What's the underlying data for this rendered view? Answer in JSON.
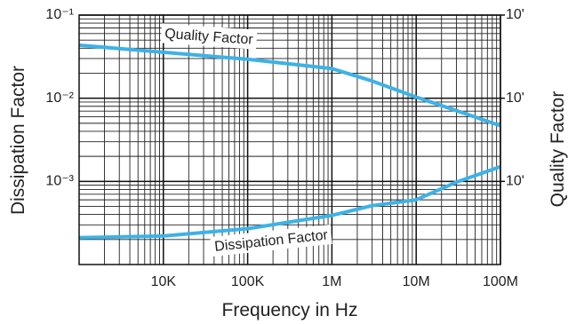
{
  "chart_data": {
    "type": "line",
    "x_label": "Frequency in Hz",
    "y_label": "Dissipation Factor",
    "y2_label": "Quality Factor",
    "log_x": true,
    "log_y": true,
    "log_y2": true,
    "grid": true,
    "minor_grid": true,
    "xlim": [
      1000,
      100000000
    ],
    "xticks": [
      {
        "value": 10000,
        "label": "10K"
      },
      {
        "value": 100000,
        "label": "100K"
      },
      {
        "value": 1000000,
        "label": "1M"
      },
      {
        "value": 10000000,
        "label": "10M"
      },
      {
        "value": 100000000,
        "label": "100M"
      }
    ],
    "ylim": [
      0.0001,
      0.1
    ],
    "yticks": [
      {
        "value": 0.1,
        "label": "10⁻¹"
      },
      {
        "value": 0.01,
        "label": "10⁻²"
      },
      {
        "value": 0.001,
        "label": "10⁻³"
      }
    ],
    "y2lim": [
      10000,
      10
    ],
    "y2ticks": [
      {
        "value": 10,
        "label": "10'"
      },
      {
        "value": 100,
        "label": "10'"
      },
      {
        "value": 1000,
        "label": "10'"
      }
    ],
    "series": [
      {
        "name": "Quality Factor",
        "color": "#3db2e6",
        "axis": "y2",
        "x": [
          1000,
          10000,
          100000,
          1000000,
          3000000,
          10000000,
          30000000,
          100000000
        ],
        "values": [
          23,
          28,
          34,
          44,
          62,
          97,
          141,
          214
        ]
      },
      {
        "name": "Dissipation Factor",
        "color": "#3db2e6",
        "x": [
          1000,
          10000,
          100000,
          1000000,
          3000000,
          10000000,
          30000000,
          100000000
        ],
        "values": [
          0.00021,
          0.00022,
          0.00027,
          0.00039,
          0.00051,
          0.0006,
          0.00098,
          0.0015
        ]
      }
    ]
  }
}
